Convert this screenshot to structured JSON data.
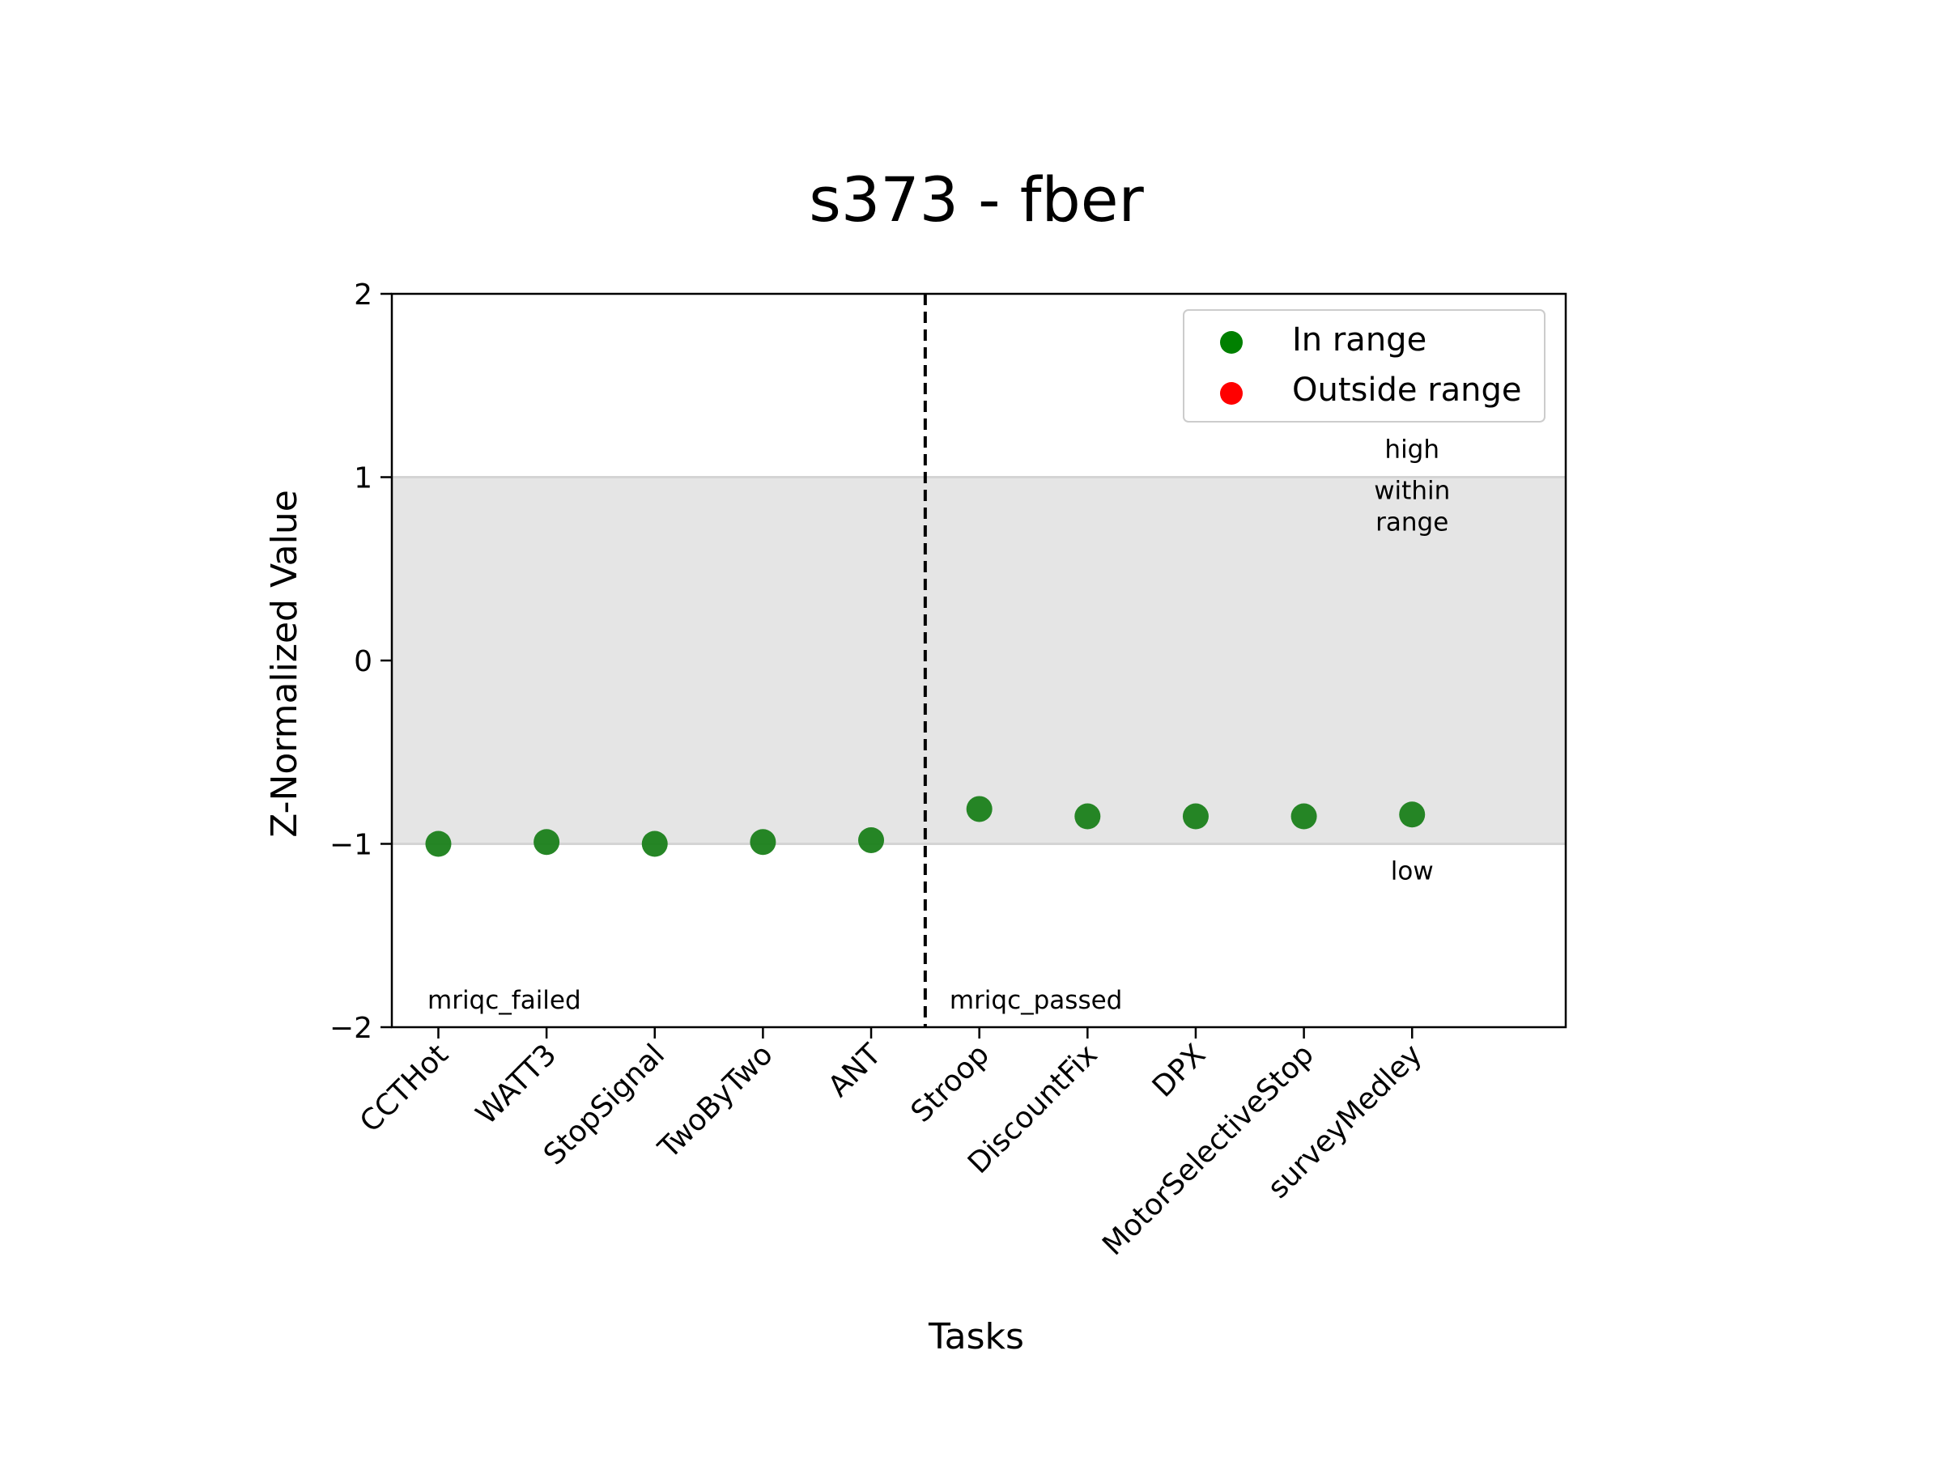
{
  "chart_data": {
    "type": "scatter",
    "title": "s373 - fber",
    "xlabel": "Tasks",
    "ylabel": "Z-Normalized Value",
    "ylim": [
      -2,
      2
    ],
    "yticks": [
      "2",
      "1",
      "0",
      "−1",
      "−2"
    ],
    "ytick_values": [
      2,
      1,
      0,
      -1,
      -2
    ],
    "categories": [
      "CCTHot",
      "WATT3",
      "StopSignal",
      "TwoByTwo",
      "ANT",
      "Stroop",
      "DiscountFix",
      "DPX",
      "MotorSelectiveStop",
      "surveyMedley"
    ],
    "series": [
      {
        "name": "In range",
        "color": "#1a7f1a",
        "values": [
          -1.0,
          -0.99,
          -1.0,
          -0.99,
          -0.98,
          -0.81,
          -0.85,
          -0.85,
          -0.85,
          -0.84
        ]
      },
      {
        "name": "Outside range",
        "color": "#ff0000",
        "values": []
      }
    ],
    "reference_band": {
      "low": -1,
      "high": 1,
      "color": "#e5e5e5"
    },
    "band_labels": {
      "high": "high",
      "within": [
        "within",
        "range"
      ],
      "low": "low"
    },
    "divider": {
      "after_index": 4,
      "style": "dashed"
    },
    "group_labels": {
      "left": "mriqc_failed",
      "right": "mriqc_passed"
    },
    "legend": {
      "placement": "top-right",
      "entries": [
        {
          "label": "In range",
          "color": "#008000"
        },
        {
          "label": "Outside range",
          "color": "#ff0000"
        }
      ]
    },
    "grid": false
  }
}
